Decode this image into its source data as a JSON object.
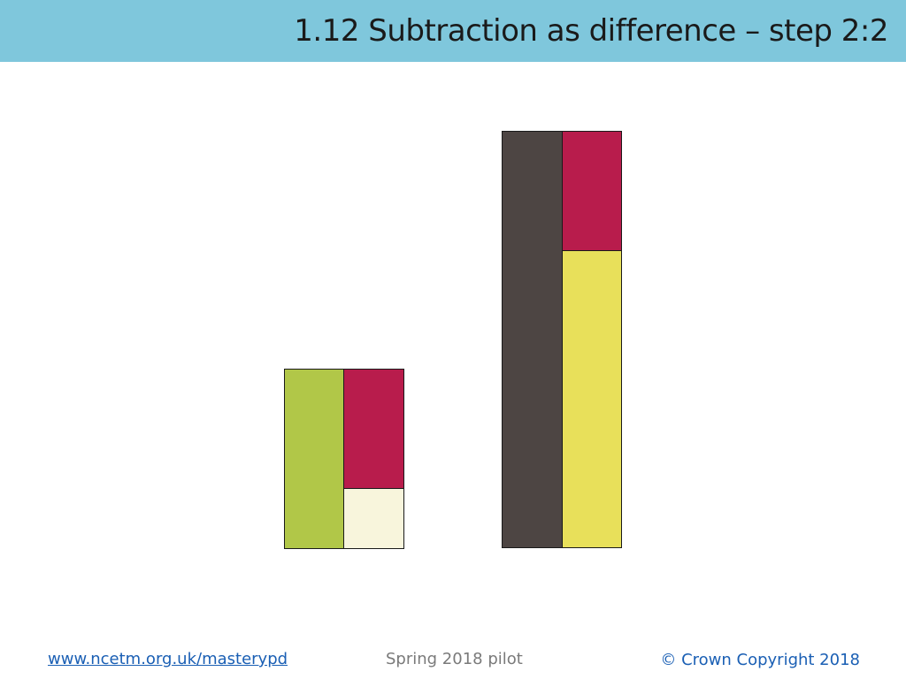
{
  "header": {
    "title": "1.12 Subtraction as difference – step 2:2",
    "color": "#7fc7dc"
  },
  "bar_model": {
    "left_model": {
      "whole_part": {
        "name": "green",
        "color": "#b1c748"
      },
      "compare_part": {
        "name": "crimson",
        "color": "#b81c4c"
      },
      "difference_part": {
        "name": "cream",
        "color": "#f8f5dc"
      }
    },
    "right_model": {
      "whole_part": {
        "name": "dark-grey",
        "color": "#4d4543"
      },
      "compare_part": {
        "name": "crimson",
        "color": "#b81c4c"
      },
      "difference_part": {
        "name": "yellow",
        "color": "#e8e05a"
      }
    }
  },
  "footer": {
    "website": "www.ncetm.org.uk/masterypd",
    "pilot": "Spring 2018 pilot",
    "copyright": "© Crown Copyright 2018"
  }
}
